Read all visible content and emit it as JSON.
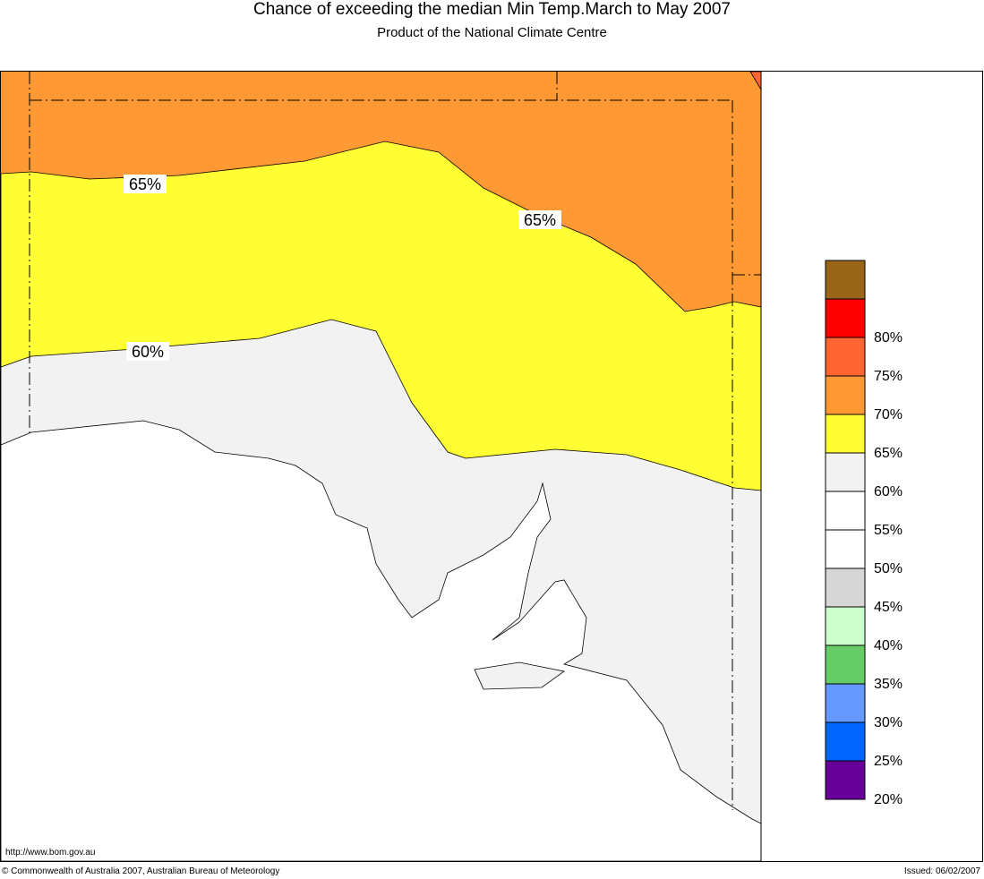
{
  "header": {
    "title": "Chance of exceeding the median Min Temp.March to May 2007",
    "subtitle": "Product of the National Climate Centre"
  },
  "map": {
    "contour_labels": [
      "65%",
      "65%",
      "60%"
    ],
    "region_colors": {
      "above_65": "#ff9933",
      "60_65": "#ffff33",
      "55_60": "#f2f2f2",
      "ocean": "#ffffff",
      "corner_70_75": "#ff6633"
    }
  },
  "legend": {
    "bands": [
      {
        "color": "#996619"
      },
      {
        "color": "#ff0000",
        "label": "80%"
      },
      {
        "color": "#ff6633",
        "label": "75%"
      },
      {
        "color": "#ff9933",
        "label": "70%"
      },
      {
        "color": "#ffff33",
        "label": "65%"
      },
      {
        "color": "#f2f2f2",
        "label": "60%"
      },
      {
        "color": "#ffffff",
        "label": "55%"
      },
      {
        "color": "#ffffff",
        "label": "50%"
      },
      {
        "color": "#d6d6d6",
        "label": "45%"
      },
      {
        "color": "#ccffcc",
        "label": "40%"
      },
      {
        "color": "#66cc66",
        "label": "35%"
      },
      {
        "color": "#6699ff",
        "label": "30%"
      },
      {
        "color": "#0066ff",
        "label": "25%"
      },
      {
        "color": "#660099",
        "label": "20%"
      }
    ]
  },
  "footer": {
    "url": "http://www.bom.gov.au",
    "copyright": "© Commonwealth of Australia 2007, Australian Bureau of Meteorology",
    "issued": "Issued: 06/02/2007"
  }
}
